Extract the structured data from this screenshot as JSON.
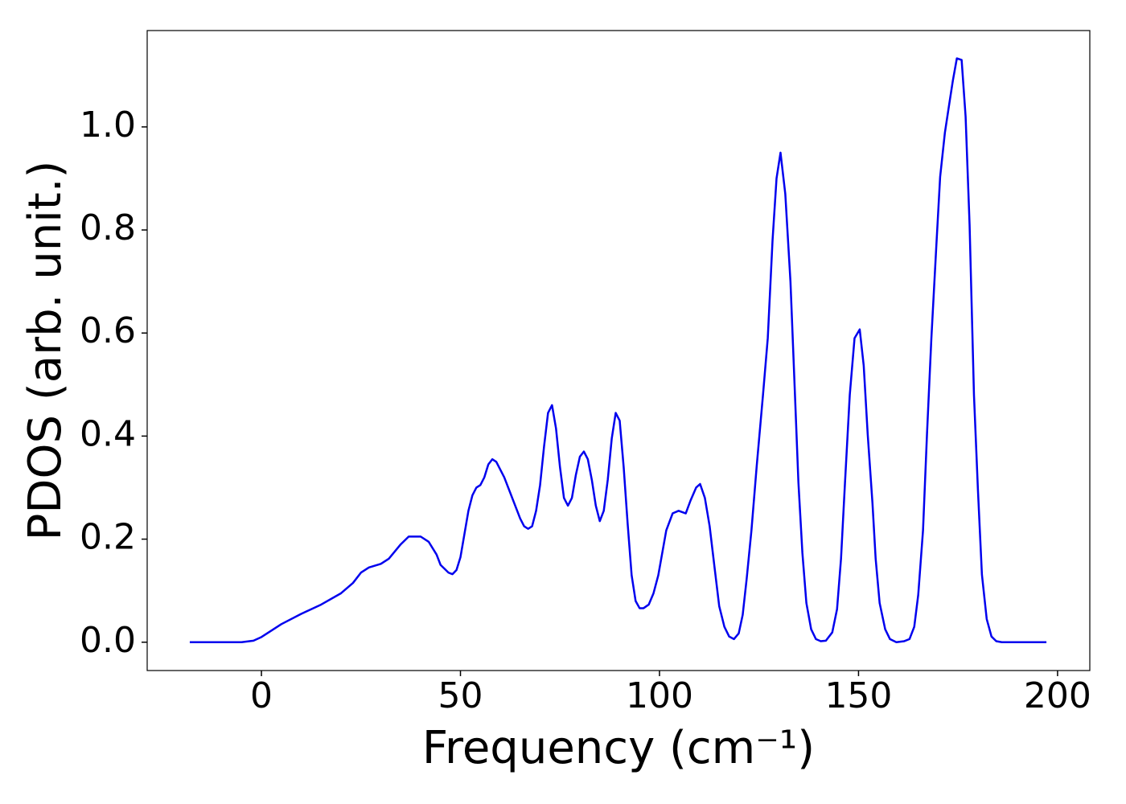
{
  "chart_data": {
    "type": "line",
    "x_label": "Frequency (cm⁻¹)",
    "y_label": "PDOS (arb. unit.)",
    "x": [
      -18,
      -5,
      -2,
      0,
      2,
      5,
      10,
      15,
      20,
      23,
      25,
      27,
      30,
      32,
      35,
      37,
      40,
      42,
      44,
      45,
      47,
      48,
      49,
      50,
      51,
      52,
      53,
      54,
      55,
      56,
      57,
      58,
      59,
      61,
      63,
      65,
      66,
      67,
      68,
      69,
      70,
      71,
      72,
      73,
      74,
      75,
      76,
      77,
      78,
      79,
      80,
      81,
      82,
      83,
      84,
      85,
      86,
      87,
      88,
      89,
      90,
      91,
      92,
      93,
      94,
      95,
      96,
      97.3,
      98.5,
      99.7,
      101.7,
      103.3,
      104.8,
      106.6,
      107.8,
      109.2,
      110.2,
      111.4,
      112.6,
      113.8,
      115.0,
      116.3,
      117.5,
      118.7,
      119.9,
      120.9,
      121.9,
      123.1,
      124.4,
      126.0,
      127.2,
      128.4,
      129.4,
      130.4,
      131.6,
      132.9,
      133.7,
      134.9,
      135.9,
      136.9,
      138.1,
      139.3,
      140.5,
      141.8,
      143.4,
      144.6,
      145.6,
      146.6,
      147.8,
      149.0,
      150.3,
      151.3,
      152.3,
      153.5,
      154.3,
      155.3,
      156.7,
      157.9,
      159.5,
      161.5,
      162.8,
      164.0,
      165.0,
      166.2,
      167.2,
      168.3,
      169.5,
      170.5,
      171.7,
      172.9,
      173.7,
      174.7,
      175.9,
      176.9,
      177.9,
      179.0,
      180.0,
      181.0,
      182.2,
      183.4,
      184.6,
      186.0,
      197.2
    ],
    "series": [
      {
        "color": "#0000ee",
        "values": [
          0,
          0,
          0.003,
          0.01,
          0.02,
          0.035,
          0.055,
          0.073,
          0.095,
          0.115,
          0.135,
          0.145,
          0.152,
          0.162,
          0.19,
          0.205,
          0.205,
          0.195,
          0.17,
          0.15,
          0.135,
          0.132,
          0.14,
          0.165,
          0.21,
          0.255,
          0.285,
          0.3,
          0.305,
          0.32,
          0.345,
          0.355,
          0.35,
          0.32,
          0.28,
          0.24,
          0.225,
          0.22,
          0.225,
          0.255,
          0.305,
          0.38,
          0.445,
          0.46,
          0.415,
          0.34,
          0.28,
          0.265,
          0.28,
          0.325,
          0.36,
          0.37,
          0.355,
          0.315,
          0.265,
          0.235,
          0.255,
          0.315,
          0.395,
          0.445,
          0.43,
          0.34,
          0.23,
          0.13,
          0.08,
          0.066,
          0.066,
          0.073,
          0.095,
          0.13,
          0.217,
          0.25,
          0.255,
          0.25,
          0.275,
          0.3,
          0.307,
          0.28,
          0.225,
          0.147,
          0.07,
          0.03,
          0.011,
          0.006,
          0.017,
          0.053,
          0.123,
          0.217,
          0.34,
          0.48,
          0.59,
          0.78,
          0.9,
          0.95,
          0.87,
          0.7,
          0.545,
          0.31,
          0.173,
          0.076,
          0.025,
          0.006,
          0.002,
          0.003,
          0.019,
          0.064,
          0.162,
          0.31,
          0.48,
          0.59,
          0.607,
          0.537,
          0.404,
          0.27,
          0.162,
          0.076,
          0.025,
          0.006,
          0,
          0.002,
          0.006,
          0.03,
          0.092,
          0.217,
          0.404,
          0.59,
          0.763,
          0.903,
          0.989,
          1.05,
          1.09,
          1.133,
          1.13,
          1.02,
          0.81,
          0.48,
          0.295,
          0.131,
          0.045,
          0.011,
          0.002,
          0,
          0
        ]
      }
    ],
    "xlim": [
      -28.7,
      208.1
    ],
    "ylim": [
      -0.055,
      1.187
    ],
    "xticks": [
      0,
      50,
      100,
      150,
      200
    ],
    "yticks": [
      {
        "value": 0,
        "label": "0.0"
      },
      {
        "value": 0.2,
        "label": "0.2"
      },
      {
        "value": 0.4,
        "label": "0.4"
      },
      {
        "value": 0.6,
        "label": "0.6"
      },
      {
        "value": 0.8,
        "label": "0.8"
      },
      {
        "value": 1.0,
        "label": "1.0"
      }
    ],
    "grid": false
  }
}
